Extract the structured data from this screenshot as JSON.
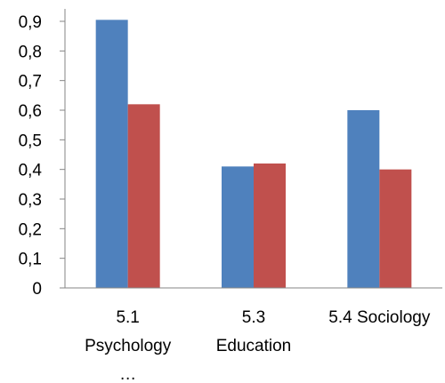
{
  "chart_data": {
    "type": "bar",
    "categories": [
      [
        "5.1",
        "Psychology",
        "…"
      ],
      [
        "5.3",
        "Education"
      ],
      [
        "5.4 Sociology"
      ]
    ],
    "series": [
      {
        "values": [
          0.905,
          0.41,
          0.6
        ],
        "color": "#4F81BD"
      },
      {
        "values": [
          0.62,
          0.42,
          0.4
        ],
        "color": "#C0504D"
      }
    ],
    "ylim": [
      0,
      0.9
    ],
    "yticks": [
      "0",
      "0,1",
      "0,2",
      "0,3",
      "0,4",
      "0,5",
      "0,6",
      "0,7",
      "0,8",
      "0,9"
    ],
    "title": "",
    "xlabel": "",
    "ylabel": "",
    "grid": false,
    "legend": "none"
  }
}
